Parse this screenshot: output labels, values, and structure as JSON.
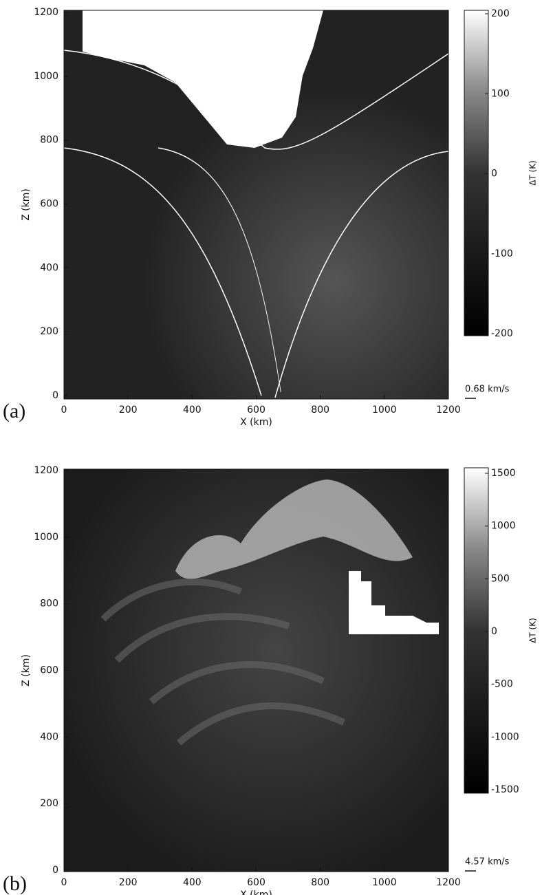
{
  "chart_data": [
    {
      "type": "heatmap",
      "panel_label": "(a)",
      "xlabel": "X (km)",
      "ylabel": "Z (km)",
      "xlim": [
        0,
        1200
      ],
      "xticks": [
        0,
        200,
        400,
        600,
        800,
        1000,
        1200
      ],
      "ylim": [
        0,
        1200
      ],
      "yticks": [
        0,
        200,
        400,
        600,
        800,
        1000,
        1200
      ],
      "colorbar_label": "ΔT (K)",
      "clim": [
        -200,
        200
      ],
      "cticks": [
        -200,
        -100,
        0,
        100,
        200
      ],
      "arrow_label": "0.68 km/s"
    },
    {
      "type": "heatmap",
      "panel_label": "(b)",
      "xlabel": "X (km)",
      "ylabel": "Z (km)",
      "xlim": [
        0,
        1200
      ],
      "xticks": [
        0,
        200,
        400,
        600,
        800,
        1000,
        1200
      ],
      "ylim": [
        0,
        1200
      ],
      "yticks": [
        0,
        200,
        400,
        600,
        800,
        1000,
        1200
      ],
      "colorbar_label": "ΔT (K)",
      "clim": [
        -1500,
        1500
      ],
      "cticks": [
        -1500,
        -1000,
        -500,
        0,
        500,
        1000,
        1500
      ],
      "arrow_label": "4.57 km/s"
    }
  ]
}
